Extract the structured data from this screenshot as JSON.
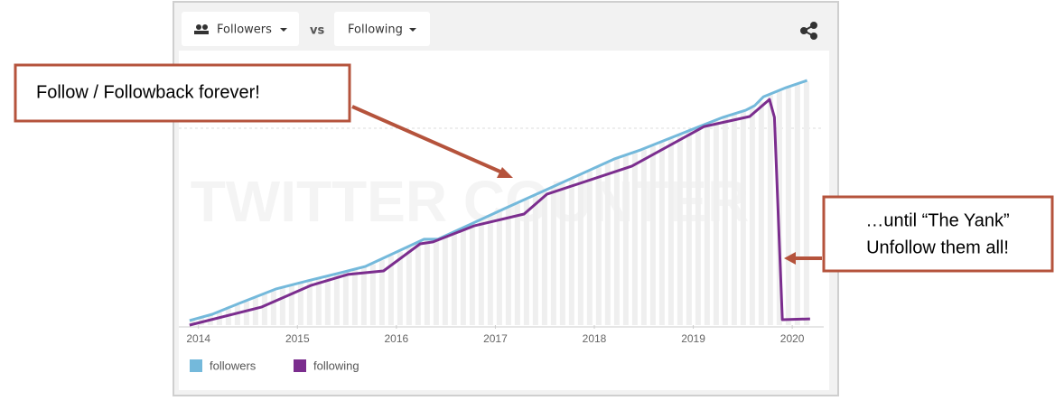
{
  "header": {
    "left_button": "Followers",
    "vs": "vs",
    "right_button": "Following"
  },
  "chart_data": {
    "type": "line",
    "watermark": "TWITTER COUNTER",
    "xlim": [
      2013.82,
      2020.3
    ],
    "ylim": [
      0,
      100
    ],
    "xticks": [
      2014,
      2015,
      2016,
      2017,
      2018,
      2019,
      2020
    ],
    "series": [
      {
        "name": "followers",
        "color": "#74b9db",
        "x": [
          2013.91,
          2014.14,
          2014.41,
          2014.78,
          2015.1,
          2015.51,
          2015.69,
          2016.28,
          2016.42,
          2017.11,
          2017.56,
          2018.2,
          2018.47,
          2019.11,
          2019.3,
          2019.53,
          2019.62,
          2019.71,
          2019.94,
          2020.15
        ],
        "values": [
          1.7,
          4,
          8,
          13.3,
          16.3,
          20,
          21.7,
          31.7,
          31.7,
          43.3,
          50.7,
          61.3,
          64.7,
          74,
          76.7,
          79.3,
          81,
          84.3,
          87.7,
          90.3
        ]
      },
      {
        "name": "following",
        "color": "#7b2d8e",
        "x": [
          2013.91,
          2014.64,
          2015.14,
          2015.51,
          2015.87,
          2016.24,
          2016.37,
          2016.79,
          2017.29,
          2017.52,
          2018.38,
          2019.11,
          2019.57,
          2019.77,
          2019.82,
          2019.9,
          2020.18
        ],
        "values": [
          0,
          6.7,
          14.7,
          18.7,
          20,
          30,
          30.7,
          36.7,
          41,
          48.3,
          58.7,
          73.3,
          77,
          83.3,
          76.7,
          2,
          2.3
        ]
      }
    ]
  },
  "annotations": {
    "left": "Follow / Followback forever!",
    "right": [
      "…until “The Yank”",
      "Unfollow them all!"
    ]
  }
}
